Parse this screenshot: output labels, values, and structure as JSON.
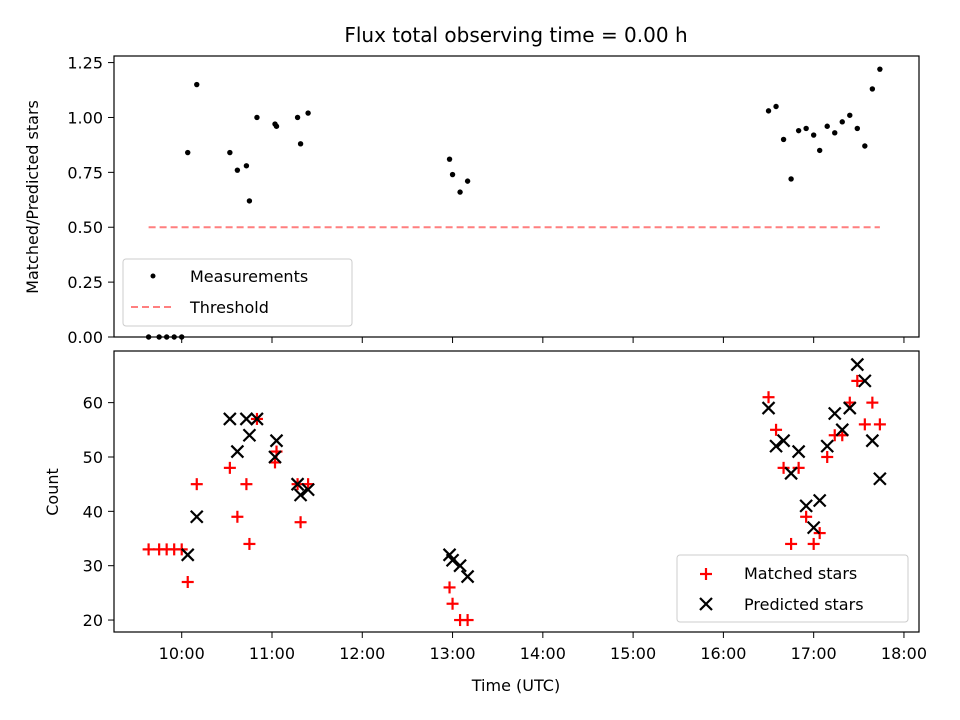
{
  "chart_data": [
    {
      "type": "scatter",
      "title": "Flux total observing time = 0.00 h",
      "xlabel": "",
      "ylabel": "Matched/Predicted stars",
      "xlim": [
        "09:15",
        "18:10"
      ],
      "ylim": [
        0,
        1.28
      ],
      "yticks": [
        "0.00",
        "0.25",
        "0.50",
        "0.75",
        "1.00",
        "1.25"
      ],
      "series": [
        {
          "name": "Measurements",
          "marker": "dot",
          "color": "#000000",
          "points": [
            [
              "09:38",
              0.0
            ],
            [
              "09:45",
              0.0
            ],
            [
              "09:50",
              0.0
            ],
            [
              "09:55",
              0.0
            ],
            [
              "10:00",
              0.0
            ],
            [
              "10:04",
              0.84
            ],
            [
              "10:10",
              1.15
            ],
            [
              "10:32",
              0.84
            ],
            [
              "10:37",
              0.76
            ],
            [
              "10:43",
              0.78
            ],
            [
              "10:45",
              0.62
            ],
            [
              "10:50",
              1.0
            ],
            [
              "11:02",
              0.97
            ],
            [
              "11:03",
              0.96
            ],
            [
              "11:17",
              1.0
            ],
            [
              "11:19",
              0.88
            ],
            [
              "11:24",
              1.02
            ],
            [
              "12:58",
              0.81
            ],
            [
              "13:00",
              0.74
            ],
            [
              "13:05",
              0.66
            ],
            [
              "13:10",
              0.71
            ],
            [
              "16:30",
              1.03
            ],
            [
              "16:35",
              1.05
            ],
            [
              "16:40",
              0.9
            ],
            [
              "16:45",
              0.72
            ],
            [
              "16:50",
              0.94
            ],
            [
              "16:55",
              0.95
            ],
            [
              "17:00",
              0.92
            ],
            [
              "17:04",
              0.85
            ],
            [
              "17:09",
              0.96
            ],
            [
              "17:14",
              0.93
            ],
            [
              "17:19",
              0.98
            ],
            [
              "17:24",
              1.01
            ],
            [
              "17:29",
              0.95
            ],
            [
              "17:34",
              0.87
            ],
            [
              "17:39",
              1.13
            ],
            [
              "17:44",
              1.22
            ]
          ]
        },
        {
          "name": "Threshold",
          "style": "dashed",
          "color": "#ff7f7f",
          "points": [
            [
              "09:38",
              0.5
            ],
            [
              "17:44",
              0.5
            ]
          ]
        }
      ],
      "legend": "lower-left"
    },
    {
      "type": "scatter",
      "title": "",
      "xlabel": "Time (UTC)",
      "ylabel": "Count",
      "xlim": [
        "09:15",
        "18:10"
      ],
      "ylim": [
        17.8,
        69.5
      ],
      "xticks": [
        "10:00",
        "11:00",
        "12:00",
        "13:00",
        "14:00",
        "15:00",
        "16:00",
        "17:00",
        "18:00"
      ],
      "yticks": [
        "20",
        "30",
        "40",
        "50",
        "60"
      ],
      "series": [
        {
          "name": "Matched stars",
          "marker": "plus",
          "color": "#ff0000",
          "points": [
            [
              "09:38",
              33
            ],
            [
              "09:45",
              33
            ],
            [
              "09:50",
              33
            ],
            [
              "09:55",
              33
            ],
            [
              "10:00",
              33
            ],
            [
              "10:04",
              27
            ],
            [
              "10:10",
              45
            ],
            [
              "10:32",
              48
            ],
            [
              "10:37",
              39
            ],
            [
              "10:43",
              45
            ],
            [
              "10:45",
              34
            ],
            [
              "10:50",
              57
            ],
            [
              "11:02",
              49
            ],
            [
              "11:03",
              51
            ],
            [
              "11:17",
              45
            ],
            [
              "11:19",
              38
            ],
            [
              "11:24",
              45
            ],
            [
              "12:58",
              26
            ],
            [
              "13:00",
              23
            ],
            [
              "13:05",
              20
            ],
            [
              "13:10",
              20
            ],
            [
              "16:30",
              61
            ],
            [
              "16:35",
              55
            ],
            [
              "16:40",
              48
            ],
            [
              "16:45",
              34
            ],
            [
              "16:50",
              48
            ],
            [
              "16:55",
              39
            ],
            [
              "17:00",
              34
            ],
            [
              "17:04",
              36
            ],
            [
              "17:09",
              50
            ],
            [
              "17:14",
              54
            ],
            [
              "17:19",
              54
            ],
            [
              "17:24",
              60
            ],
            [
              "17:29",
              64
            ],
            [
              "17:34",
              56
            ],
            [
              "17:39",
              60
            ],
            [
              "17:44",
              56
            ]
          ]
        },
        {
          "name": "Predicted stars",
          "marker": "x",
          "color": "#000000",
          "points": [
            [
              "10:04",
              32
            ],
            [
              "10:10",
              39
            ],
            [
              "10:32",
              57
            ],
            [
              "10:37",
              51
            ],
            [
              "10:43",
              57
            ],
            [
              "10:45",
              54
            ],
            [
              "10:50",
              57
            ],
            [
              "11:02",
              50
            ],
            [
              "11:03",
              53
            ],
            [
              "11:17",
              45
            ],
            [
              "11:19",
              43
            ],
            [
              "11:24",
              44
            ],
            [
              "12:58",
              32
            ],
            [
              "13:00",
              31
            ],
            [
              "13:05",
              30
            ],
            [
              "13:10",
              28
            ],
            [
              "16:30",
              59
            ],
            [
              "16:35",
              52
            ],
            [
              "16:40",
              53
            ],
            [
              "16:45",
              47
            ],
            [
              "16:50",
              51
            ],
            [
              "16:55",
              41
            ],
            [
              "17:00",
              37
            ],
            [
              "17:04",
              42
            ],
            [
              "17:09",
              52
            ],
            [
              "17:14",
              58
            ],
            [
              "17:19",
              55
            ],
            [
              "17:24",
              59
            ],
            [
              "17:29",
              67
            ],
            [
              "17:34",
              64
            ],
            [
              "17:39",
              53
            ],
            [
              "17:44",
              46
            ]
          ]
        }
      ],
      "legend": "lower-right"
    }
  ]
}
